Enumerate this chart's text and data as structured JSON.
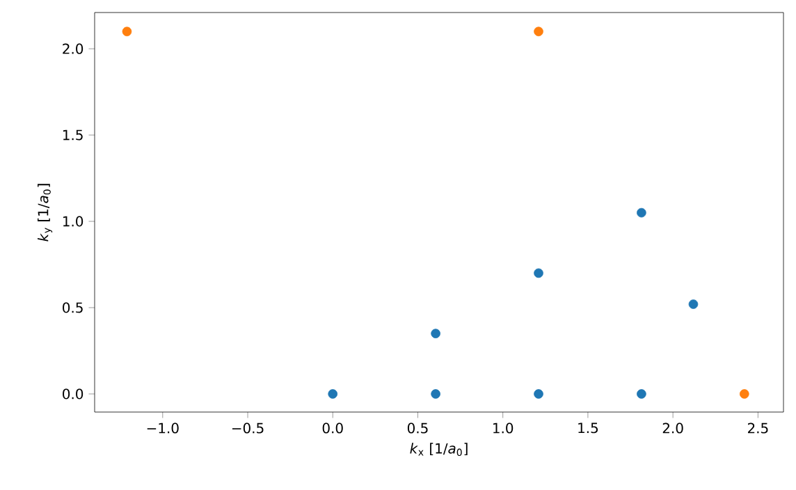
{
  "chart_data": {
    "type": "scatter",
    "xlabel": "*k*$_{x}$ [1/*a*$_{0}$]",
    "ylabel": "*k*$_{y}$ [1/*a*$_{0}$]",
    "xlim": [
      -1.4,
      2.65
    ],
    "ylim": [
      -0.105,
      2.21
    ],
    "xticks": [
      {
        "value": -1.0,
        "label": "−1.0"
      },
      {
        "value": -0.5,
        "label": "−0.5"
      },
      {
        "value": 0.0,
        "label": "0.0"
      },
      {
        "value": 0.5,
        "label": "0.5"
      },
      {
        "value": 1.0,
        "label": "1.0"
      },
      {
        "value": 1.5,
        "label": "1.5"
      },
      {
        "value": 2.0,
        "label": "2.0"
      },
      {
        "value": 2.5,
        "label": "2.5"
      }
    ],
    "yticks": [
      {
        "value": 0.0,
        "label": "0.0"
      },
      {
        "value": 0.5,
        "label": "0.5"
      },
      {
        "value": 1.0,
        "label": "1.0"
      },
      {
        "value": 1.5,
        "label": "1.5"
      },
      {
        "value": 2.0,
        "label": "2.0"
      }
    ],
    "marker": "circle",
    "series": [
      {
        "color": "#1f77b4",
        "x": [
          0.0,
          0.605,
          0.605,
          1.21,
          1.21,
          1.815,
          1.815,
          2.12
        ],
        "values": [
          0.0,
          0.0,
          0.35,
          0.0,
          0.7,
          0.0,
          1.05,
          0.52
        ]
      },
      {
        "color": "#ff7f0e",
        "x": [
          -1.21,
          1.21,
          2.42
        ],
        "values": [
          2.1,
          2.1,
          0.0
        ]
      }
    ]
  }
}
